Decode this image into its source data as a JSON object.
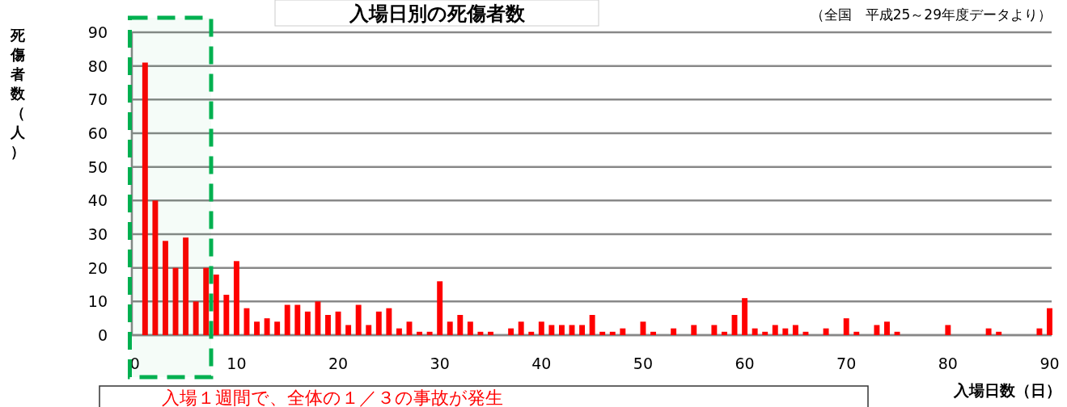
{
  "chart_data": {
    "type": "bar",
    "title": "入場日別の死傷者数",
    "subtitle": "（全国　平成25～29年度データより）",
    "xlabel": "入場日数（日）",
    "ylabel": "死傷者数（人）",
    "x": [
      1,
      2,
      3,
      4,
      5,
      6,
      7,
      8,
      9,
      10,
      11,
      12,
      13,
      14,
      15,
      16,
      17,
      18,
      19,
      20,
      21,
      22,
      23,
      24,
      25,
      26,
      27,
      28,
      29,
      30,
      31,
      32,
      33,
      34,
      35,
      37,
      38,
      39,
      40,
      41,
      42,
      43,
      44,
      45,
      46,
      47,
      48,
      50,
      51,
      53,
      55,
      57,
      58,
      59,
      60,
      61,
      62,
      63,
      64,
      65,
      66,
      68,
      70,
      71,
      73,
      74,
      75,
      80,
      84,
      85,
      89,
      90
    ],
    "values": [
      81,
      40,
      28,
      20,
      29,
      10,
      20,
      18,
      12,
      22,
      8,
      4,
      5,
      4,
      9,
      9,
      7,
      10,
      6,
      7,
      3,
      9,
      3,
      7,
      8,
      2,
      4,
      1,
      1,
      16,
      4,
      6,
      4,
      1,
      1,
      2,
      4,
      1,
      4,
      3,
      3,
      3,
      3,
      6,
      1,
      1,
      2,
      4,
      1,
      2,
      3,
      3,
      1,
      6,
      11,
      2,
      1,
      3,
      2,
      3,
      1,
      2,
      5,
      1,
      3,
      4,
      1,
      3,
      2,
      1,
      2,
      8
    ],
    "color": "#ff0000",
    "xlim": [
      -0.3,
      90.2
    ],
    "xticks": [
      0,
      10,
      20,
      30,
      40,
      50,
      60,
      70,
      80,
      90
    ],
    "ylim": [
      0,
      90
    ],
    "yticks": [
      0,
      10,
      20,
      30,
      40,
      50,
      60,
      70,
      80,
      90
    ],
    "grid": "y",
    "bands": [
      {
        "axis": "x",
        "from": -0.5,
        "to": 7.5,
        "color": "#00b050"
      }
    ],
    "annotations": [
      "入場１週間で、全体の１／３の事故が発生"
    ]
  }
}
